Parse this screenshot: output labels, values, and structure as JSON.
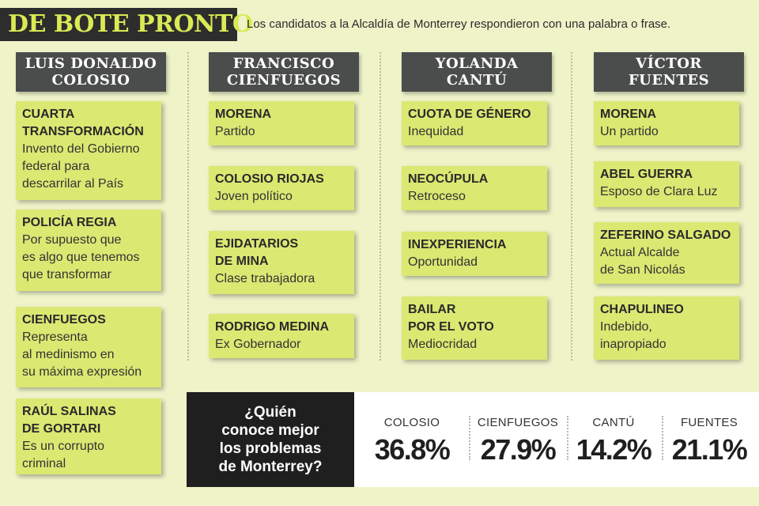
{
  "header": {
    "title": "DE BOTE PRONTO",
    "subtitle": "Los candidatos a la Alcaldía de Monterrey respondieron con una palabra o frase."
  },
  "columns": [
    {
      "name_lines": [
        "LUIS DONALDO",
        "COLOSIO"
      ],
      "cards": [
        {
          "keyword_lines": [
            "CUARTA",
            "TRANSFORMACIÓN"
          ],
          "answer_lines": [
            "Invento del Gobierno",
            "federal para",
            "descarrilar al País"
          ]
        },
        {
          "keyword_lines": [
            "POLICÍA REGIA"
          ],
          "answer_lines": [
            "Por supuesto que",
            "es algo que tenemos",
            "que transformar"
          ]
        },
        {
          "keyword_lines": [
            "CIENFUEGOS"
          ],
          "answer_lines": [
            "Representa",
            "al medinismo en",
            "su máxima expresión"
          ]
        },
        {
          "keyword_lines": [
            "RAÚL SALINAS",
            "DE GORTARI"
          ],
          "answer_lines": [
            "Es un corrupto",
            "criminal"
          ]
        }
      ]
    },
    {
      "name_lines": [
        "FRANCISCO",
        "CIENFUEGOS"
      ],
      "cards": [
        {
          "keyword_lines": [
            "MORENA"
          ],
          "answer_lines": [
            "Partido"
          ]
        },
        {
          "keyword_lines": [
            "COLOSIO RIOJAS"
          ],
          "answer_lines": [
            "Joven político"
          ]
        },
        {
          "keyword_lines": [
            "EJIDATARIOS",
            "DE MINA"
          ],
          "answer_lines": [
            "Clase trabajadora"
          ]
        },
        {
          "keyword_lines": [
            "RODRIGO MEDINA"
          ],
          "answer_lines": [
            "Ex Gobernador"
          ]
        }
      ]
    },
    {
      "name_lines": [
        "YOLANDA",
        "CANTÚ"
      ],
      "cards": [
        {
          "keyword_lines": [
            "CUOTA DE GÉNERO"
          ],
          "answer_lines": [
            "Inequidad"
          ]
        },
        {
          "keyword_lines": [
            "NEOCÚPULA"
          ],
          "answer_lines": [
            "Retroceso"
          ]
        },
        {
          "keyword_lines": [
            "INEXPERIENCIA"
          ],
          "answer_lines": [
            "Oportunidad"
          ]
        },
        {
          "keyword_lines": [
            "BAILAR",
            "POR EL VOTO"
          ],
          "answer_lines": [
            "Mediocridad"
          ]
        }
      ]
    },
    {
      "name_lines": [
        "VÍCTOR",
        "FUENTES"
      ],
      "cards": [
        {
          "keyword_lines": [
            "MORENA"
          ],
          "answer_lines": [
            "Un partido"
          ]
        },
        {
          "keyword_lines": [
            "ABEL GUERRA"
          ],
          "answer_lines": [
            "Esposo de Clara Luz"
          ]
        },
        {
          "keyword_lines": [
            "ZEFERINO SALGADO"
          ],
          "answer_lines": [
            "Actual Alcalde",
            "de San Nicolás"
          ]
        },
        {
          "keyword_lines": [
            "CHAPULINEO"
          ],
          "answer_lines": [
            "Indebido,",
            "inapropiado"
          ]
        }
      ]
    }
  ],
  "poll": {
    "question_lines": [
      "¿Quién",
      "conoce mejor",
      "los problemas",
      "de Monterrey?"
    ],
    "results": [
      {
        "name": "COLOSIO",
        "value": "36.8%"
      },
      {
        "name": "CIENFUEGOS",
        "value": "27.9%"
      },
      {
        "name": "CANTÚ",
        "value": "14.2%"
      },
      {
        "name": "FUENTES",
        "value": "21.1%"
      }
    ]
  },
  "colors": {
    "background": "#eef3c8",
    "card": "#dbe872",
    "header_dark": "#2d2d2d",
    "header_accent": "#d9ea54",
    "column_header": "#4b4d4c"
  }
}
